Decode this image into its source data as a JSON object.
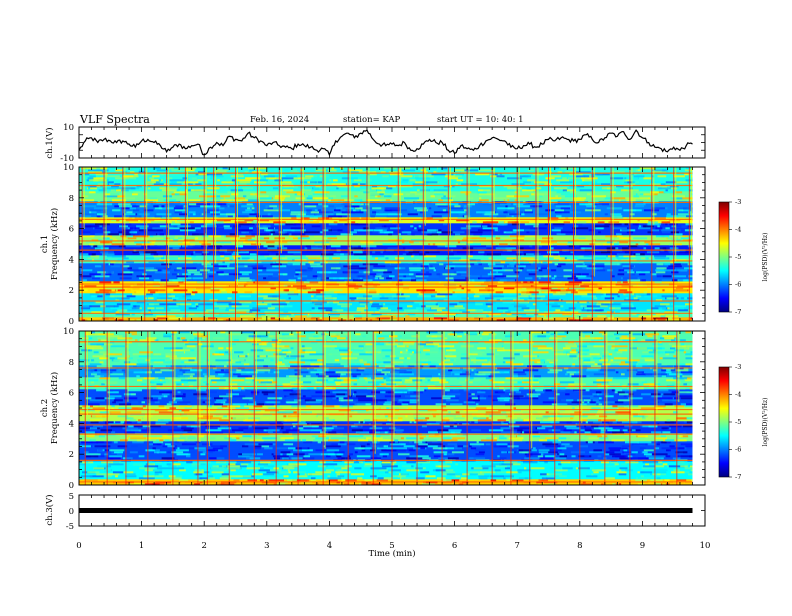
{
  "header": {
    "title": "VLF Spectra",
    "date": "Feb. 16, 2024",
    "station": "station= KAP",
    "start": "start  UT  =   10: 40: 1"
  },
  "colors": {
    "trace": "#000000",
    "colormap": [
      "#00007f",
      "#0000ff",
      "#0080ff",
      "#00ffff",
      "#80ff80",
      "#ffff00",
      "#ff8000",
      "#ff0000",
      "#7f0000"
    ]
  },
  "chart_data": [
    {
      "type": "line",
      "panel": "ch1-waveform",
      "ylabel": "ch.1(V)",
      "ylim": [
        -10,
        10
      ],
      "yticks": [
        "10",
        "-10"
      ],
      "xlim": [
        0,
        10
      ],
      "x_minutes": [
        0,
        0.1,
        0.2,
        0.3,
        0.4,
        0.5,
        0.6,
        0.7,
        0.8,
        0.9,
        1.0,
        1.1,
        1.2,
        1.3,
        1.4,
        1.5,
        1.6,
        1.7,
        1.8,
        1.9,
        2.0,
        2.1,
        2.2,
        2.3,
        2.4,
        2.5,
        2.6,
        2.7,
        2.8,
        2.9,
        3.0,
        3.1,
        3.2,
        3.3,
        3.4,
        3.5,
        3.6,
        3.7,
        3.8,
        3.9,
        4.0,
        4.1,
        4.2,
        4.3,
        4.4,
        4.5,
        4.6,
        4.7,
        4.8,
        4.9,
        5.0,
        5.1,
        5.2,
        5.3,
        5.4,
        5.5,
        5.6,
        5.7,
        5.8,
        5.9,
        6.0,
        6.1,
        6.2,
        6.3,
        6.4,
        6.5,
        6.6,
        6.7,
        6.8,
        6.9,
        7.0,
        7.1,
        7.2,
        7.3,
        7.4,
        7.5,
        7.6,
        7.7,
        7.8,
        7.9,
        8.0,
        8.1,
        8.2,
        8.3,
        8.4,
        8.5,
        8.6,
        8.7,
        8.8,
        8.9,
        9.0,
        9.1,
        9.2,
        9.3,
        9.4,
        9.5,
        9.6,
        9.7,
        9.8
      ],
      "values_V": [
        -5,
        1,
        3,
        0,
        2,
        1,
        0,
        1,
        -1,
        -3,
        1,
        2,
        0,
        -2,
        -6,
        -3,
        -1,
        -4,
        -2,
        -1,
        -8,
        -3,
        0,
        -2,
        4,
        2,
        1,
        6,
        3,
        1,
        -2,
        0,
        -2,
        -3,
        -4,
        -1,
        -2,
        -3,
        -5,
        -4,
        -8,
        1,
        4,
        6,
        3,
        6,
        8,
        2,
        -1,
        -2,
        -1,
        -2,
        0,
        -5,
        -4,
        -1,
        2,
        0,
        0,
        -5,
        -7,
        -2,
        -4,
        -5,
        -2,
        1,
        3,
        2,
        1,
        -3,
        -4,
        -2,
        -1,
        -3,
        -1,
        2,
        1,
        3,
        2,
        1,
        2,
        5,
        2,
        0,
        3,
        6,
        4,
        7,
        2,
        8,
        3,
        0,
        -3,
        -4,
        -6,
        -3,
        -5,
        -2,
        -1
      ]
    },
    {
      "type": "heatmap",
      "panel": "ch1-spectrogram",
      "ylabel": "Frequency (kHz)",
      "channel_label": "ch.1",
      "ylim": [
        0,
        10
      ],
      "yticks": [
        "0",
        "2",
        "4",
        "6",
        "8",
        "10"
      ],
      "xlim": [
        0,
        10
      ],
      "colorbar": {
        "label": "log(PSD)(V²/Hz)",
        "range": [
          -7,
          -3
        ],
        "ticks": [
          "-3",
          "-4",
          "-5",
          "-6",
          "-7"
        ]
      },
      "bands_kHz": [
        {
          "from": 0,
          "to": 0.3,
          "level": -4.2
        },
        {
          "from": 0.3,
          "to": 0.7,
          "level": -5.2
        },
        {
          "from": 0.7,
          "to": 1.8,
          "level": -5.6
        },
        {
          "from": 1.8,
          "to": 2.6,
          "level": -4.4
        },
        {
          "from": 2.6,
          "to": 3.8,
          "level": -6.1
        },
        {
          "from": 3.8,
          "to": 4.3,
          "level": -5.3
        },
        {
          "from": 4.3,
          "to": 5.0,
          "level": -6.4
        },
        {
          "from": 5.0,
          "to": 5.6,
          "level": -4.9
        },
        {
          "from": 5.6,
          "to": 6.4,
          "level": -6.3
        },
        {
          "from": 6.4,
          "to": 6.8,
          "level": -4.6
        },
        {
          "from": 6.8,
          "to": 7.8,
          "level": -6.0
        },
        {
          "from": 7.8,
          "to": 8.4,
          "level": -5.1
        },
        {
          "from": 8.4,
          "to": 10.0,
          "level": -5.4
        }
      ],
      "lines_kHz": [
        0.5,
        1.3,
        2.2,
        2.4,
        3.9,
        4.6,
        5.2,
        6.6,
        7.7,
        8.8,
        9.6
      ],
      "bursts_min": [
        0.05,
        0.4,
        0.7,
        1.05,
        1.4,
        1.7,
        2.0,
        2.15,
        2.5,
        2.85,
        3.2,
        3.55,
        3.9,
        4.3,
        4.6,
        5.1,
        5.5,
        5.9,
        6.2,
        6.6,
        7.0,
        7.3,
        7.5,
        7.9,
        8.2,
        8.5,
        8.8,
        9.15,
        9.5,
        9.75
      ]
    },
    {
      "type": "heatmap",
      "panel": "ch2-spectrogram",
      "ylabel": "Frequency (kHz)",
      "channel_label": "ch.2",
      "ylim": [
        0,
        10
      ],
      "yticks": [
        "0",
        "2",
        "4",
        "6",
        "8",
        "10"
      ],
      "xlim": [
        0,
        10
      ],
      "colorbar": {
        "label": "log(PSD)(V²/Hz)",
        "range": [
          -7,
          -3
        ],
        "ticks": [
          "-3",
          "-4",
          "-5",
          "-6",
          "-7"
        ]
      },
      "bands_kHz": [
        {
          "from": 0,
          "to": 0.4,
          "level": -4.3
        },
        {
          "from": 0.4,
          "to": 1.6,
          "level": -5.5
        },
        {
          "from": 1.6,
          "to": 2.8,
          "level": -6.2
        },
        {
          "from": 2.8,
          "to": 3.4,
          "level": -5.0
        },
        {
          "from": 3.4,
          "to": 4.2,
          "level": -6.3
        },
        {
          "from": 4.2,
          "to": 5.2,
          "level": -4.8
        },
        {
          "from": 5.2,
          "to": 6.2,
          "level": -6.2
        },
        {
          "from": 6.2,
          "to": 7.0,
          "level": -5.2
        },
        {
          "from": 7.0,
          "to": 7.8,
          "level": -5.9
        },
        {
          "from": 7.8,
          "to": 10.0,
          "level": -5.2
        }
      ],
      "lines_kHz": [
        0.2,
        1.6,
        3.3,
        3.9,
        4.6,
        4.9,
        6.4,
        7.6,
        9.3
      ],
      "bursts_min": [
        0.1,
        0.45,
        0.75,
        1.1,
        1.5,
        1.9,
        2.05,
        2.4,
        2.8,
        3.15,
        3.5,
        3.9,
        4.3,
        4.7,
        5.0,
        5.4,
        5.8,
        6.2,
        6.6,
        6.9,
        7.2,
        7.6,
        8.0,
        8.4,
        8.8,
        9.2,
        9.55
      ]
    },
    {
      "type": "line",
      "panel": "ch3-waveform",
      "ylabel": "ch.3(V)",
      "ylim": [
        -5,
        5
      ],
      "yticks": [
        "5",
        "0",
        "-5"
      ],
      "xlim": [
        0,
        10
      ],
      "level_V": 0
    }
  ],
  "xaxis": {
    "label": "Time (min)",
    "ticks": [
      "0",
      "1",
      "2",
      "3",
      "4",
      "5",
      "6",
      "7",
      "8",
      "9",
      "10"
    ]
  }
}
